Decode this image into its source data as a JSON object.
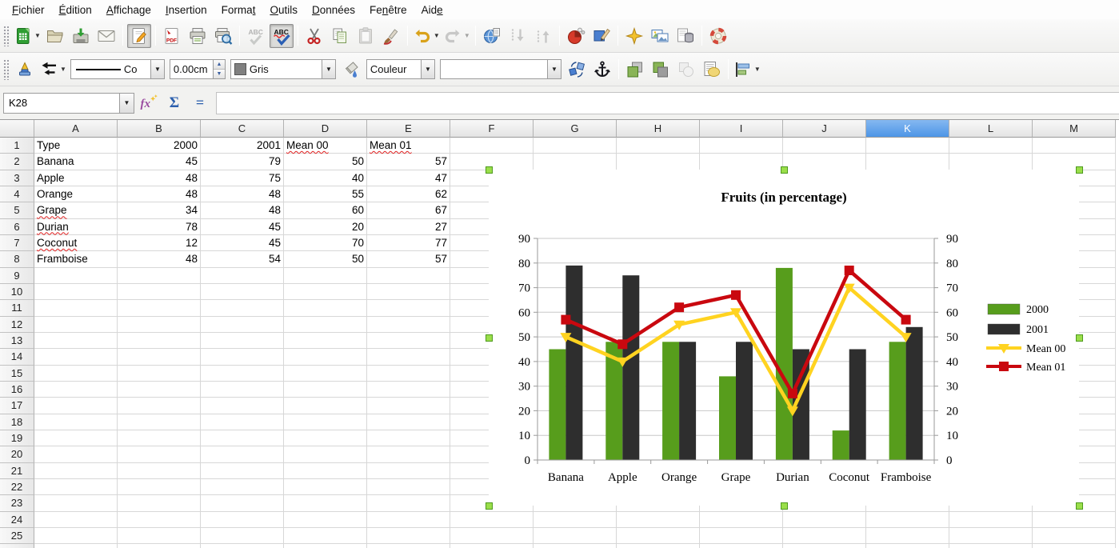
{
  "menu": {
    "items": [
      {
        "label": "Fichier",
        "mnemonic": 0
      },
      {
        "label": "Édition",
        "mnemonic": 0
      },
      {
        "label": "Affichage",
        "mnemonic": 0
      },
      {
        "label": "Insertion",
        "mnemonic": 0
      },
      {
        "label": "Format",
        "mnemonic": 5
      },
      {
        "label": "Outils",
        "mnemonic": 0
      },
      {
        "label": "Données",
        "mnemonic": 0
      },
      {
        "label": "Fenêtre",
        "mnemonic": 2
      },
      {
        "label": "Aide",
        "mnemonic": 3
      }
    ]
  },
  "toolbar_standard": {
    "items": [
      {
        "icon": "new-document",
        "dropdown": true
      },
      {
        "icon": "open"
      },
      {
        "icon": "save"
      },
      {
        "icon": "email"
      },
      {
        "type": "sep"
      },
      {
        "icon": "edit-file",
        "state": "pressed"
      },
      {
        "type": "sep"
      },
      {
        "icon": "export-pdf"
      },
      {
        "icon": "print"
      },
      {
        "icon": "print-preview"
      },
      {
        "type": "sep"
      },
      {
        "icon": "spellcheck",
        "state": "disabled"
      },
      {
        "icon": "auto-spellcheck",
        "state": "pressed"
      },
      {
        "type": "sep"
      },
      {
        "icon": "cut"
      },
      {
        "icon": "copy"
      },
      {
        "icon": "paste",
        "state": "disabled"
      },
      {
        "icon": "clone-formatting"
      },
      {
        "type": "sep"
      },
      {
        "icon": "undo",
        "dropdown": true
      },
      {
        "icon": "redo",
        "state": "disabled",
        "dropdown": true
      },
      {
        "type": "sep"
      },
      {
        "icon": "hyperlink"
      },
      {
        "icon": "sort-descending",
        "state": "disabled"
      },
      {
        "icon": "sort-ascending",
        "state": "disabled"
      },
      {
        "type": "sep"
      },
      {
        "icon": "insert-chart"
      },
      {
        "icon": "draw-functions"
      },
      {
        "type": "sep"
      },
      {
        "icon": "navigator"
      },
      {
        "icon": "gallery"
      },
      {
        "icon": "data-sources"
      },
      {
        "type": "sep"
      },
      {
        "icon": "help"
      }
    ]
  },
  "toolbar_drawing": {
    "items": [
      {
        "icon": "line-properties"
      },
      {
        "icon": "arrow-style",
        "dropdown": true
      },
      {
        "type": "select",
        "name": "line-style",
        "value": "Co",
        "show_line": true
      },
      {
        "type": "spinner",
        "name": "line-width",
        "value": "0.00cm"
      },
      {
        "type": "select",
        "name": "line-color",
        "value": "Gris",
        "swatch": "#808080"
      },
      {
        "icon": "area-style"
      },
      {
        "type": "select",
        "name": "fill-type",
        "value": "Couleur"
      },
      {
        "type": "select",
        "name": "fill-color",
        "value": ""
      },
      {
        "icon": "rotate"
      },
      {
        "icon": "anchor"
      },
      {
        "type": "sep"
      },
      {
        "icon": "bring-to-front"
      },
      {
        "icon": "send-to-back"
      },
      {
        "icon": "to-foreground",
        "state": "disabled"
      },
      {
        "icon": "to-background"
      },
      {
        "type": "sep"
      },
      {
        "icon": "align-objects",
        "dropdown": true
      }
    ]
  },
  "formula_bar": {
    "cell_reference": "K28",
    "formula": ""
  },
  "grid": {
    "columns": [
      "A",
      "B",
      "C",
      "D",
      "E",
      "F",
      "G",
      "H",
      "I",
      "J",
      "K",
      "L",
      "M"
    ],
    "selected_column": "K",
    "row_count": 26,
    "data": [
      [
        "Type",
        "2000",
        "2001",
        "Mean 00",
        "Mean 01"
      ],
      [
        "Banana",
        45,
        79,
        50,
        57
      ],
      [
        "Apple",
        48,
        75,
        40,
        47
      ],
      [
        "Orange",
        48,
        48,
        55,
        62
      ],
      [
        "Grape",
        34,
        48,
        60,
        67
      ],
      [
        "Durian",
        78,
        45,
        20,
        27
      ],
      [
        "Coconut",
        12,
        45,
        70,
        77
      ],
      [
        "Framboise",
        48,
        54,
        50,
        57
      ]
    ],
    "misspelled": [
      "D1",
      "E1",
      "A5",
      "A6",
      "A7"
    ]
  },
  "chart_data": {
    "type": "combo-bar-line",
    "title": "Fruits (in percentage)",
    "categories": [
      "Banana",
      "Apple",
      "Orange",
      "Grape",
      "Durian",
      "Coconut",
      "Framboise"
    ],
    "series": [
      {
        "name": "2000",
        "type": "bar",
        "color": "#579d1c",
        "values": [
          45,
          48,
          48,
          34,
          78,
          12,
          48
        ]
      },
      {
        "name": "2001",
        "type": "bar",
        "color": "#2e2e2e",
        "values": [
          79,
          75,
          48,
          48,
          45,
          45,
          54
        ]
      },
      {
        "name": "Mean 00",
        "type": "line",
        "marker": "triangle-down",
        "color": "#ffd320",
        "values": [
          50,
          40,
          55,
          60,
          20,
          70,
          50
        ]
      },
      {
        "name": "Mean 01",
        "type": "line",
        "marker": "square",
        "color": "#c9080f",
        "values": [
          57,
          47,
          62,
          67,
          27,
          77,
          57
        ]
      }
    ],
    "ylim": [
      0,
      90
    ],
    "ytick": 10,
    "grid": true,
    "dual_axis": true,
    "legend_position": "right"
  }
}
